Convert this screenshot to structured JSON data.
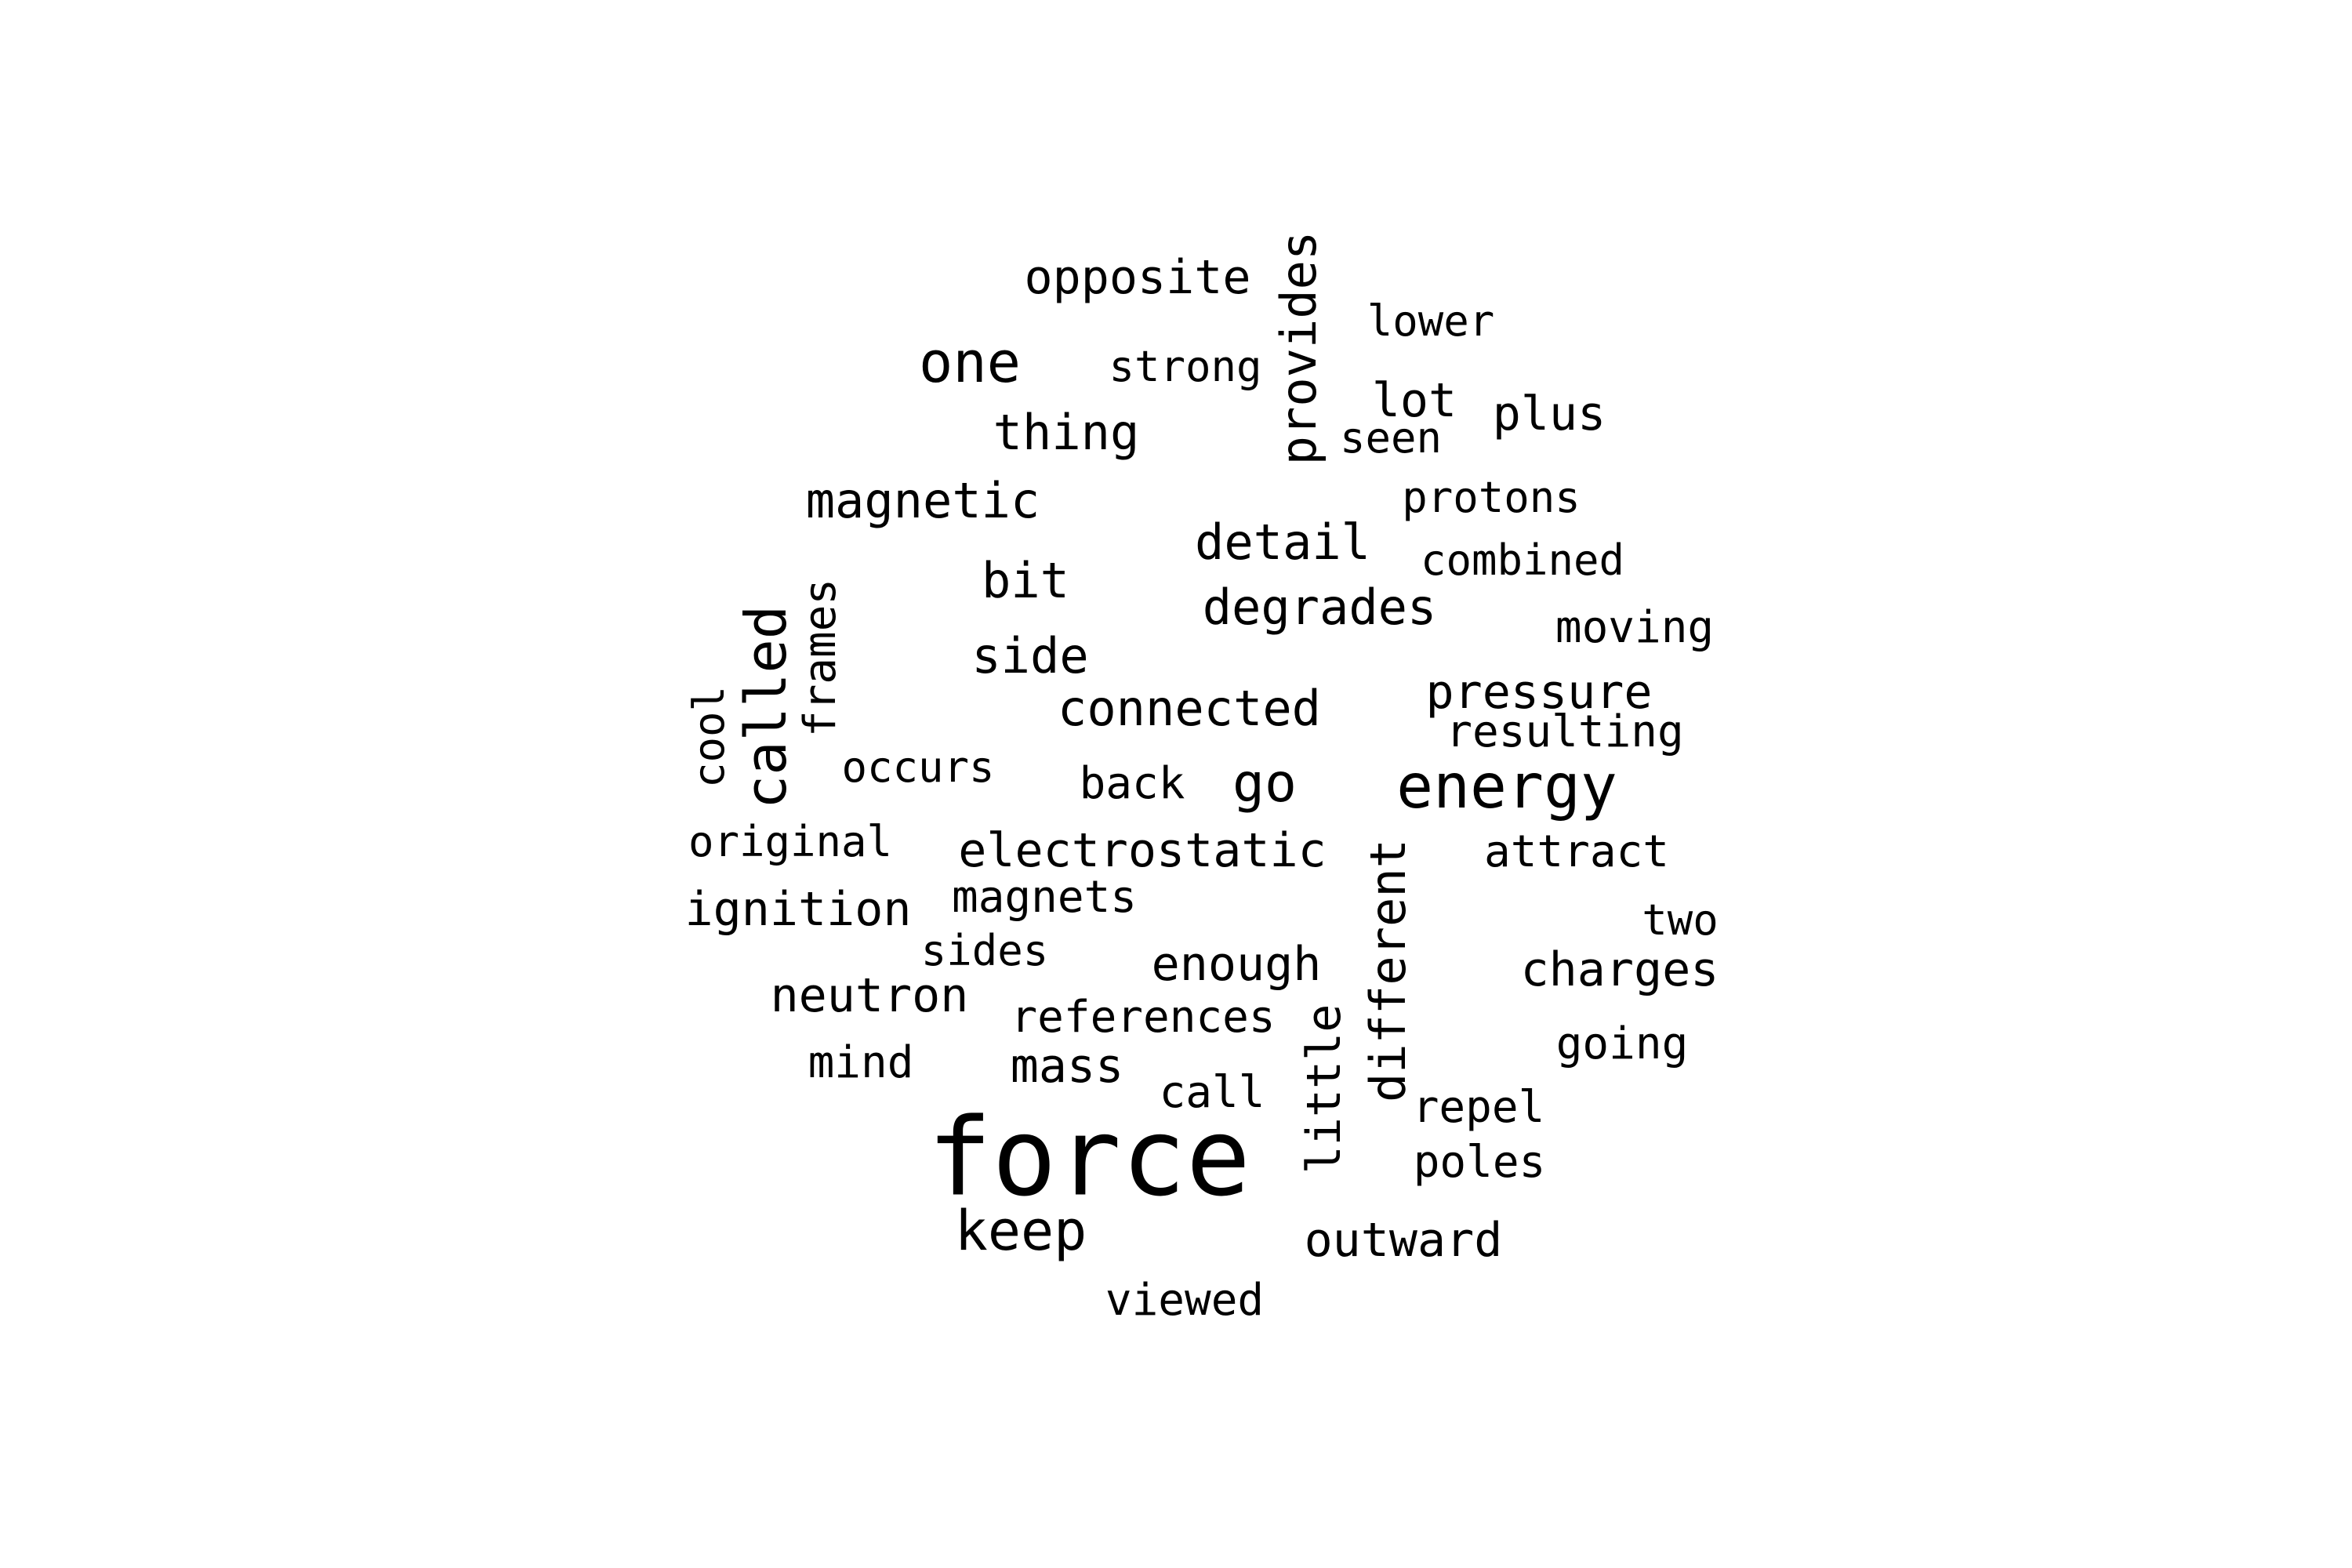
{
  "word_cloud": {
    "text_color": "#000000",
    "background_color": "#ffffff",
    "words": [
      {
        "text": "force",
        "orientation": "horizontal"
      },
      {
        "text": "energy",
        "orientation": "horizontal"
      },
      {
        "text": "one",
        "orientation": "horizontal"
      },
      {
        "text": "called",
        "orientation": "vertical"
      },
      {
        "text": "keep",
        "orientation": "horizontal"
      },
      {
        "text": "provides",
        "orientation": "vertical"
      },
      {
        "text": "different",
        "orientation": "vertical"
      },
      {
        "text": "go",
        "orientation": "horizontal"
      },
      {
        "text": "little",
        "orientation": "vertical"
      },
      {
        "text": "pressure",
        "orientation": "horizontal"
      },
      {
        "text": "opposite",
        "orientation": "horizontal"
      },
      {
        "text": "thing",
        "orientation": "horizontal"
      },
      {
        "text": "magnetic",
        "orientation": "horizontal"
      },
      {
        "text": "detail",
        "orientation": "horizontal"
      },
      {
        "text": "degrades",
        "orientation": "horizontal"
      },
      {
        "text": "bit",
        "orientation": "horizontal"
      },
      {
        "text": "side",
        "orientation": "horizontal"
      },
      {
        "text": "connected",
        "orientation": "horizontal"
      },
      {
        "text": "frames",
        "orientation": "vertical"
      },
      {
        "text": "electrostatic",
        "orientation": "horizontal"
      },
      {
        "text": "ignition",
        "orientation": "horizontal"
      },
      {
        "text": "enough",
        "orientation": "horizontal"
      },
      {
        "text": "charges",
        "orientation": "horizontal"
      },
      {
        "text": "neutron",
        "orientation": "horizontal"
      },
      {
        "text": "outward",
        "orientation": "horizontal"
      },
      {
        "text": "lot",
        "orientation": "horizontal"
      },
      {
        "text": "plus",
        "orientation": "horizontal"
      },
      {
        "text": "mass",
        "orientation": "horizontal"
      },
      {
        "text": "strong",
        "orientation": "horizontal"
      },
      {
        "text": "lower",
        "orientation": "horizontal"
      },
      {
        "text": "seen",
        "orientation": "horizontal"
      },
      {
        "text": "protons",
        "orientation": "horizontal"
      },
      {
        "text": "combined",
        "orientation": "horizontal"
      },
      {
        "text": "moving",
        "orientation": "horizontal"
      },
      {
        "text": "resulting",
        "orientation": "horizontal"
      },
      {
        "text": "cool",
        "orientation": "vertical"
      },
      {
        "text": "occurs",
        "orientation": "horizontal"
      },
      {
        "text": "back",
        "orientation": "horizontal"
      },
      {
        "text": "original",
        "orientation": "horizontal"
      },
      {
        "text": "attract",
        "orientation": "horizontal"
      },
      {
        "text": "magnets",
        "orientation": "horizontal"
      },
      {
        "text": "two",
        "orientation": "horizontal"
      },
      {
        "text": "sides",
        "orientation": "horizontal"
      },
      {
        "text": "references",
        "orientation": "horizontal"
      },
      {
        "text": "going",
        "orientation": "horizontal"
      },
      {
        "text": "mind",
        "orientation": "horizontal"
      },
      {
        "text": "call",
        "orientation": "horizontal"
      },
      {
        "text": "repel",
        "orientation": "horizontal"
      },
      {
        "text": "poles",
        "orientation": "horizontal"
      },
      {
        "text": "viewed",
        "orientation": "horizontal"
      }
    ]
  }
}
